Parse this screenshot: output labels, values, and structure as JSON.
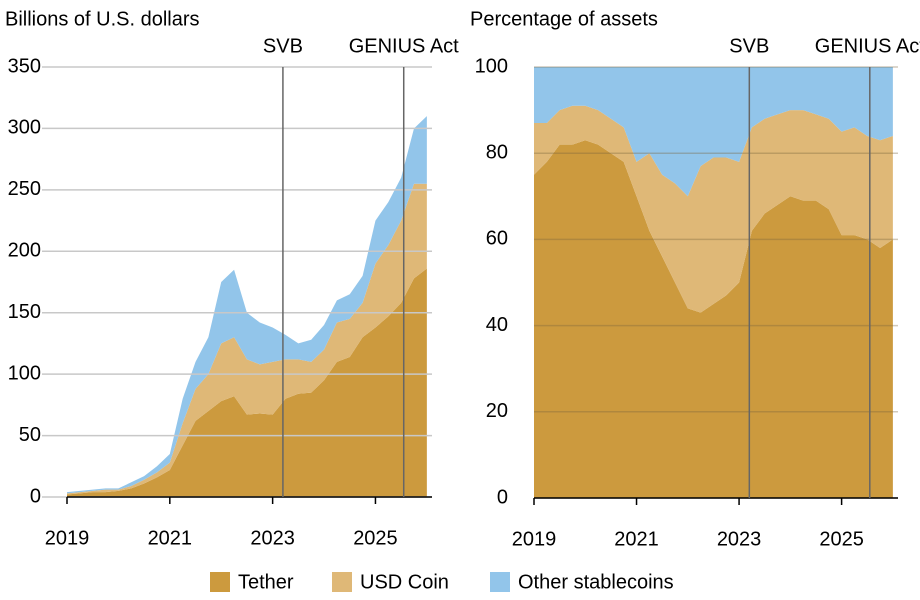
{
  "chart_data": [
    {
      "type": "area",
      "stacked": true,
      "title": "Billions of U.S. dollars",
      "x": [
        2019,
        2019.25,
        2019.5,
        2019.75,
        2020,
        2020.25,
        2020.5,
        2020.75,
        2021,
        2021.25,
        2021.5,
        2021.75,
        2022,
        2022.25,
        2022.5,
        2022.75,
        2023,
        2023.25,
        2023.5,
        2023.75,
        2024,
        2024.25,
        2024.5,
        2024.75,
        2025,
        2025.25,
        2025.5,
        2025.75,
        2026
      ],
      "xlim": [
        2019,
        2026.1
      ],
      "xticks": [
        2019,
        2021,
        2023,
        2025
      ],
      "ylim": [
        0,
        350
      ],
      "yticks": [
        0,
        50,
        100,
        150,
        200,
        250,
        300,
        350
      ],
      "grid": true,
      "series": [
        {
          "name": "Tether",
          "color": "#cc9a3e",
          "values": [
            2,
            3,
            4,
            4,
            5,
            7,
            11,
            16,
            22,
            42,
            62,
            70,
            78,
            82,
            67,
            68,
            67,
            80,
            84,
            85,
            95,
            110,
            114,
            130,
            138,
            147,
            158,
            178,
            186
          ]
        },
        {
          "name": "USD Coin",
          "color": "#dfb877",
          "values": [
            1,
            1,
            1,
            2,
            1,
            2,
            3,
            4,
            6,
            18,
            26,
            30,
            47,
            48,
            45,
            40,
            43,
            32,
            28,
            25,
            25,
            32,
            31,
            28,
            52,
            58,
            67,
            77,
            69
          ]
        },
        {
          "name": "Other stablecoins",
          "color": "#92c5ea",
          "values": [
            1,
            1,
            1,
            1,
            1,
            3,
            3,
            5,
            7,
            20,
            22,
            30,
            50,
            55,
            38,
            34,
            28,
            20,
            13,
            18,
            20,
            18,
            20,
            22,
            35,
            35,
            35,
            45,
            55
          ]
        }
      ],
      "annotations": [
        {
          "x": 2023.2,
          "label": "SVB"
        },
        {
          "x": 2025.55,
          "label": "GENIUS Act"
        }
      ]
    },
    {
      "type": "area",
      "stacked": true,
      "title": "Percentage of assets",
      "x": [
        2019,
        2019.25,
        2019.5,
        2019.75,
        2020,
        2020.25,
        2020.5,
        2020.75,
        2021,
        2021.25,
        2021.5,
        2021.75,
        2022,
        2022.25,
        2022.5,
        2022.75,
        2023,
        2023.25,
        2023.5,
        2023.75,
        2024,
        2024.25,
        2024.5,
        2024.75,
        2025,
        2025.25,
        2025.5,
        2025.75,
        2026
      ],
      "xlim": [
        2019,
        2026.1
      ],
      "xticks": [
        2019,
        2021,
        2023,
        2025
      ],
      "ylim": [
        0,
        100
      ],
      "yticks": [
        0,
        20,
        40,
        60,
        80,
        100
      ],
      "grid": true,
      "series": [
        {
          "color": "#cc9a3e",
          "values": [
            75,
            78,
            82,
            82,
            83,
            82,
            80,
            78,
            70,
            62,
            56,
            50,
            44,
            43,
            45,
            47,
            50,
            62,
            66,
            68,
            70,
            69,
            69,
            67,
            61,
            61,
            60,
            58,
            60
          ]
        },
        {
          "color": "#dfb877",
          "values": [
            12,
            9,
            8,
            9,
            8,
            8,
            8,
            8,
            8,
            18,
            19,
            23,
            26,
            34,
            34,
            32,
            28,
            24,
            22,
            21,
            20,
            21,
            20,
            21,
            24,
            25,
            24,
            25,
            24
          ]
        },
        {
          "color": "#92c5ea",
          "values": [
            13,
            13,
            10,
            9,
            9,
            10,
            12,
            14,
            22,
            20,
            25,
            27,
            30,
            23,
            21,
            21,
            22,
            14,
            12,
            11,
            10,
            10,
            11,
            12,
            15,
            14,
            16,
            17,
            16
          ]
        }
      ],
      "annotations": [
        {
          "x": 2023.2,
          "label": "SVB"
        },
        {
          "x": 2025.55,
          "label": "GENIUS Act"
        }
      ]
    }
  ]
}
